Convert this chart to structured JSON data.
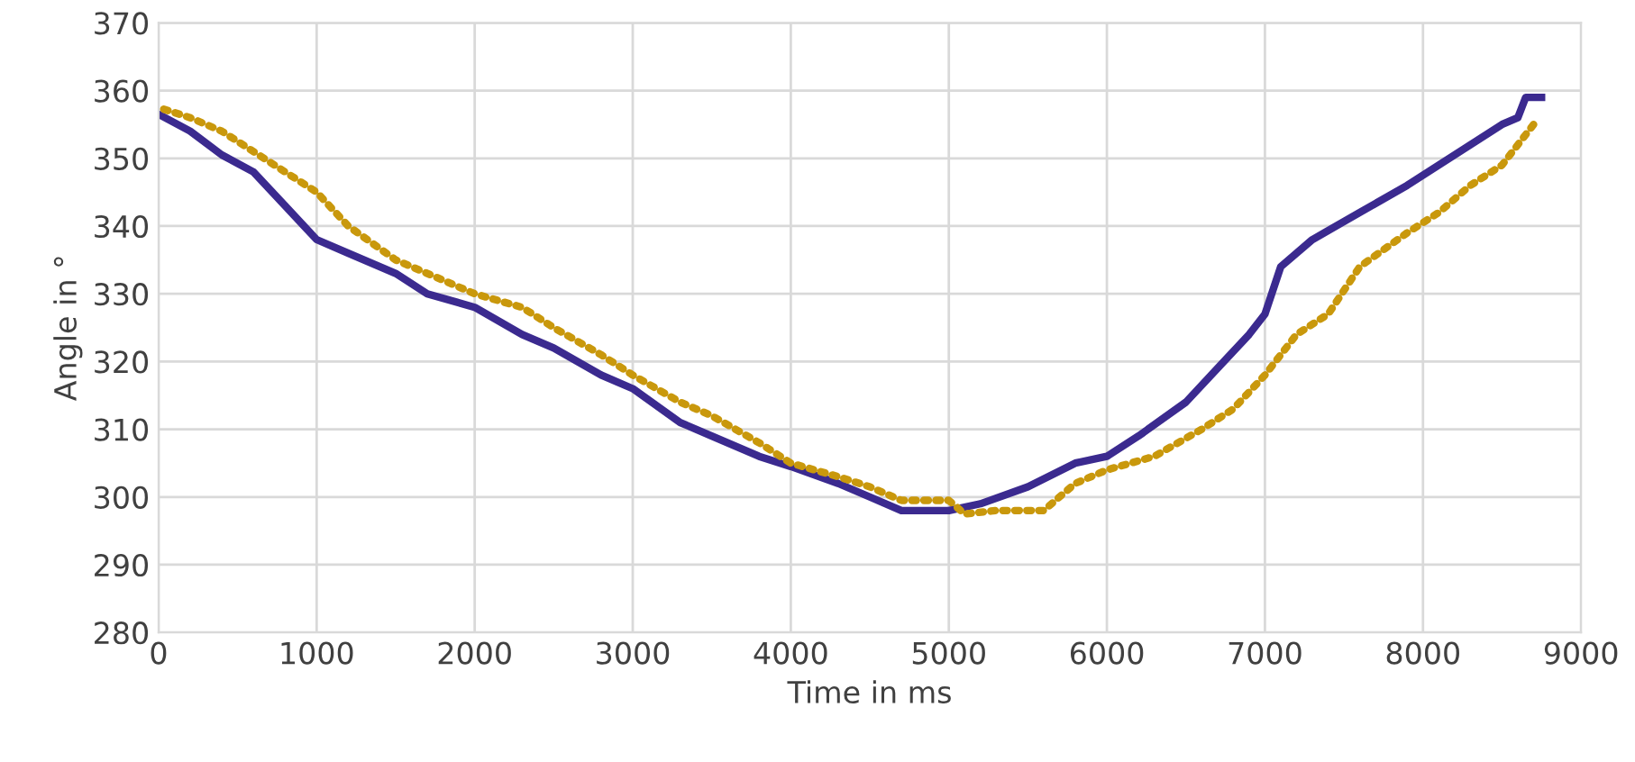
{
  "chart_data": {
    "type": "line",
    "xlabel": "Time in ms",
    "ylabel": "Angle in °",
    "xlim": [
      0,
      9000
    ],
    "xticks": [
      0,
      1000,
      2000,
      3000,
      4000,
      5000,
      6000,
      7000,
      8000,
      9000
    ],
    "ylim": [
      280,
      370
    ],
    "yticks": [
      280,
      290,
      300,
      310,
      320,
      330,
      340,
      350,
      360,
      370
    ],
    "grid": true,
    "series": [
      {
        "color": "#3b2a8f",
        "line_style": "solid",
        "x": [
          0,
          200,
          400,
          600,
          800,
          1000,
          1200,
          1500,
          1700,
          2000,
          2300,
          2500,
          2800,
          3000,
          3300,
          3500,
          3800,
          4000,
          4300,
          4500,
          4700,
          5000,
          5200,
          5500,
          5800,
          6000,
          6200,
          6500,
          6700,
          6900,
          7000,
          7100,
          7300,
          7600,
          7900,
          8100,
          8300,
          8500,
          8600,
          8650,
          8750
        ],
        "values": [
          356.5,
          354,
          350.5,
          348,
          343,
          338,
          336,
          333,
          330,
          328,
          324,
          322,
          318,
          316,
          311,
          309,
          306,
          304.5,
          302,
          300,
          298,
          298,
          299,
          301.5,
          305,
          306,
          309,
          314,
          319,
          324,
          327,
          334,
          338,
          342,
          346,
          349,
          352,
          355,
          356,
          359,
          359
        ]
      },
      {
        "color": "#c9980c",
        "line_style": "dotted",
        "x": [
          0,
          200,
          400,
          600,
          800,
          1000,
          1200,
          1500,
          1700,
          2000,
          2300,
          2500,
          2800,
          3000,
          3300,
          3500,
          3800,
          4000,
          4300,
          4500,
          4700,
          5000,
          5100,
          5300,
          5600,
          5800,
          6000,
          6300,
          6600,
          6800,
          7000,
          7200,
          7400,
          7600,
          7900,
          8100,
          8300,
          8500,
          8700
        ],
        "values": [
          357.5,
          356,
          354,
          351,
          348,
          345,
          340,
          335,
          333,
          330,
          328,
          325,
          321,
          318,
          314,
          312,
          308,
          305,
          303,
          301.5,
          299.5,
          299.5,
          297.5,
          298,
          298,
          302,
          304,
          306,
          310,
          313,
          318,
          324,
          327,
          334,
          339,
          342,
          346,
          349,
          355
        ]
      }
    ]
  }
}
